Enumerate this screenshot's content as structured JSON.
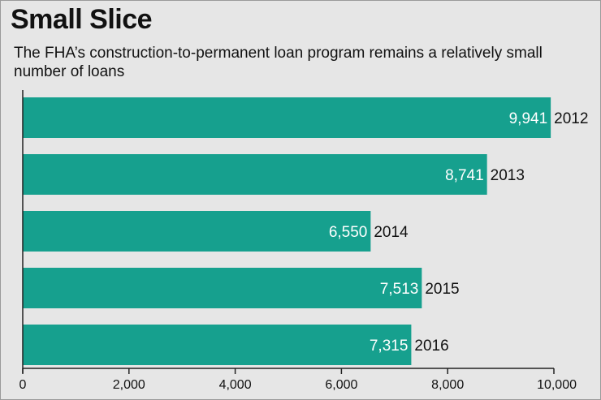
{
  "header": {
    "title": "Small Slice",
    "subtitle": "The FHA’s construction-to-permanent loan program remains a relatively small number of loans"
  },
  "colors": {
    "bar": "#16a08e",
    "background": "#e6e6e6",
    "axis": "#222222"
  },
  "chart_data": {
    "type": "bar",
    "orientation": "horizontal",
    "title": "Small Slice",
    "subtitle": "The FHA’s construction-to-permanent loan program remains a relatively small number of loans",
    "categories": [
      "2012",
      "2013",
      "2014",
      "2015",
      "2016"
    ],
    "values": [
      9941,
      8741,
      6550,
      7513,
      7315
    ],
    "value_labels": [
      "9,941",
      "8,741",
      "6,550",
      "7,513",
      "7,315"
    ],
    "xlim": [
      0,
      10000
    ],
    "xticks": [
      0,
      2000,
      4000,
      6000,
      8000,
      10000
    ],
    "xtick_labels": [
      "0",
      "2,000",
      "4,000",
      "6,000",
      "8,000",
      "10,000"
    ],
    "xlabel": "",
    "ylabel": "",
    "grid": false,
    "legend": "none"
  }
}
